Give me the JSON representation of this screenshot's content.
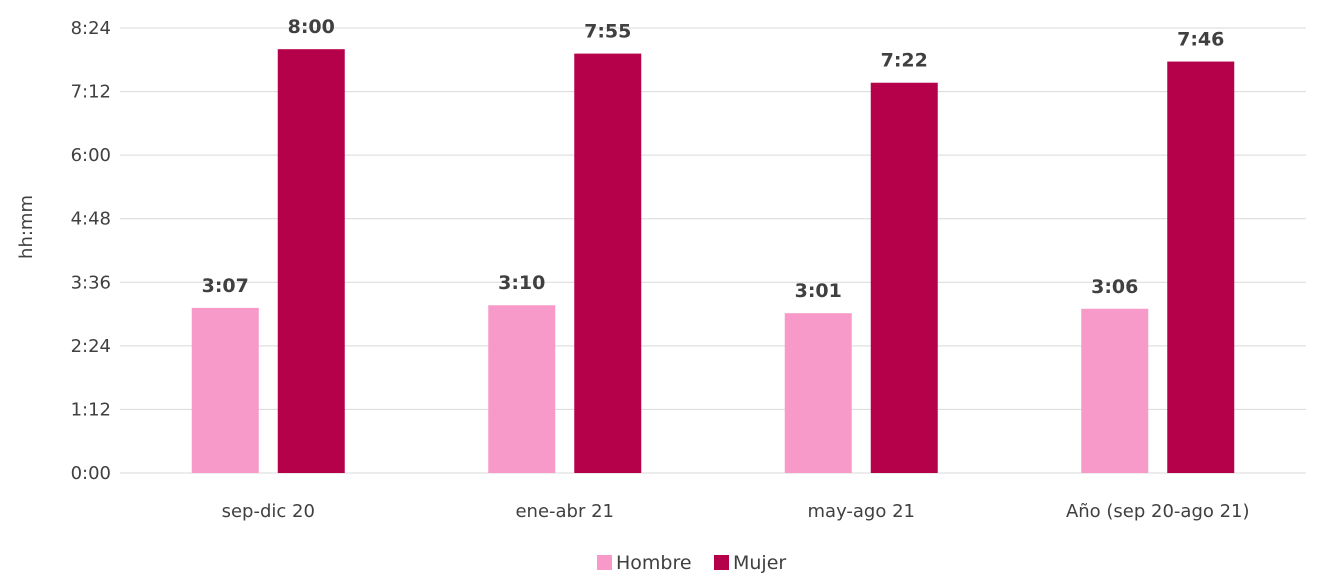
{
  "chart_data": {
    "type": "bar",
    "ylabel": "hh:mm",
    "xlabel": "",
    "y_unit": "minutes",
    "ylim": [
      0,
      504
    ],
    "y_ticks": [
      {
        "value": 0,
        "label": "0:00"
      },
      {
        "value": 72,
        "label": "1:12"
      },
      {
        "value": 144,
        "label": "2:24"
      },
      {
        "value": 216,
        "label": "3:36"
      },
      {
        "value": 288,
        "label": "4:48"
      },
      {
        "value": 360,
        "label": "6:00"
      },
      {
        "value": 432,
        "label": "7:12"
      },
      {
        "value": 504,
        "label": "8:24"
      }
    ],
    "grid": true,
    "legend_position": "bottom",
    "categories": [
      "sep-dic 20",
      "ene-abr 21",
      "may-ago 21",
      "Año (sep 20-ago 21)"
    ],
    "series": [
      {
        "name": "Hombre",
        "color": "#f79ac9",
        "values": [
          187,
          190,
          181,
          186
        ],
        "labels": [
          "3:07",
          "3:10",
          "3:01",
          "3:06"
        ]
      },
      {
        "name": "Mujer",
        "color": "#b5004a",
        "values": [
          480,
          475,
          442,
          466
        ],
        "labels": [
          "8:00",
          "7:55",
          "7:22",
          "7:46"
        ]
      }
    ]
  }
}
